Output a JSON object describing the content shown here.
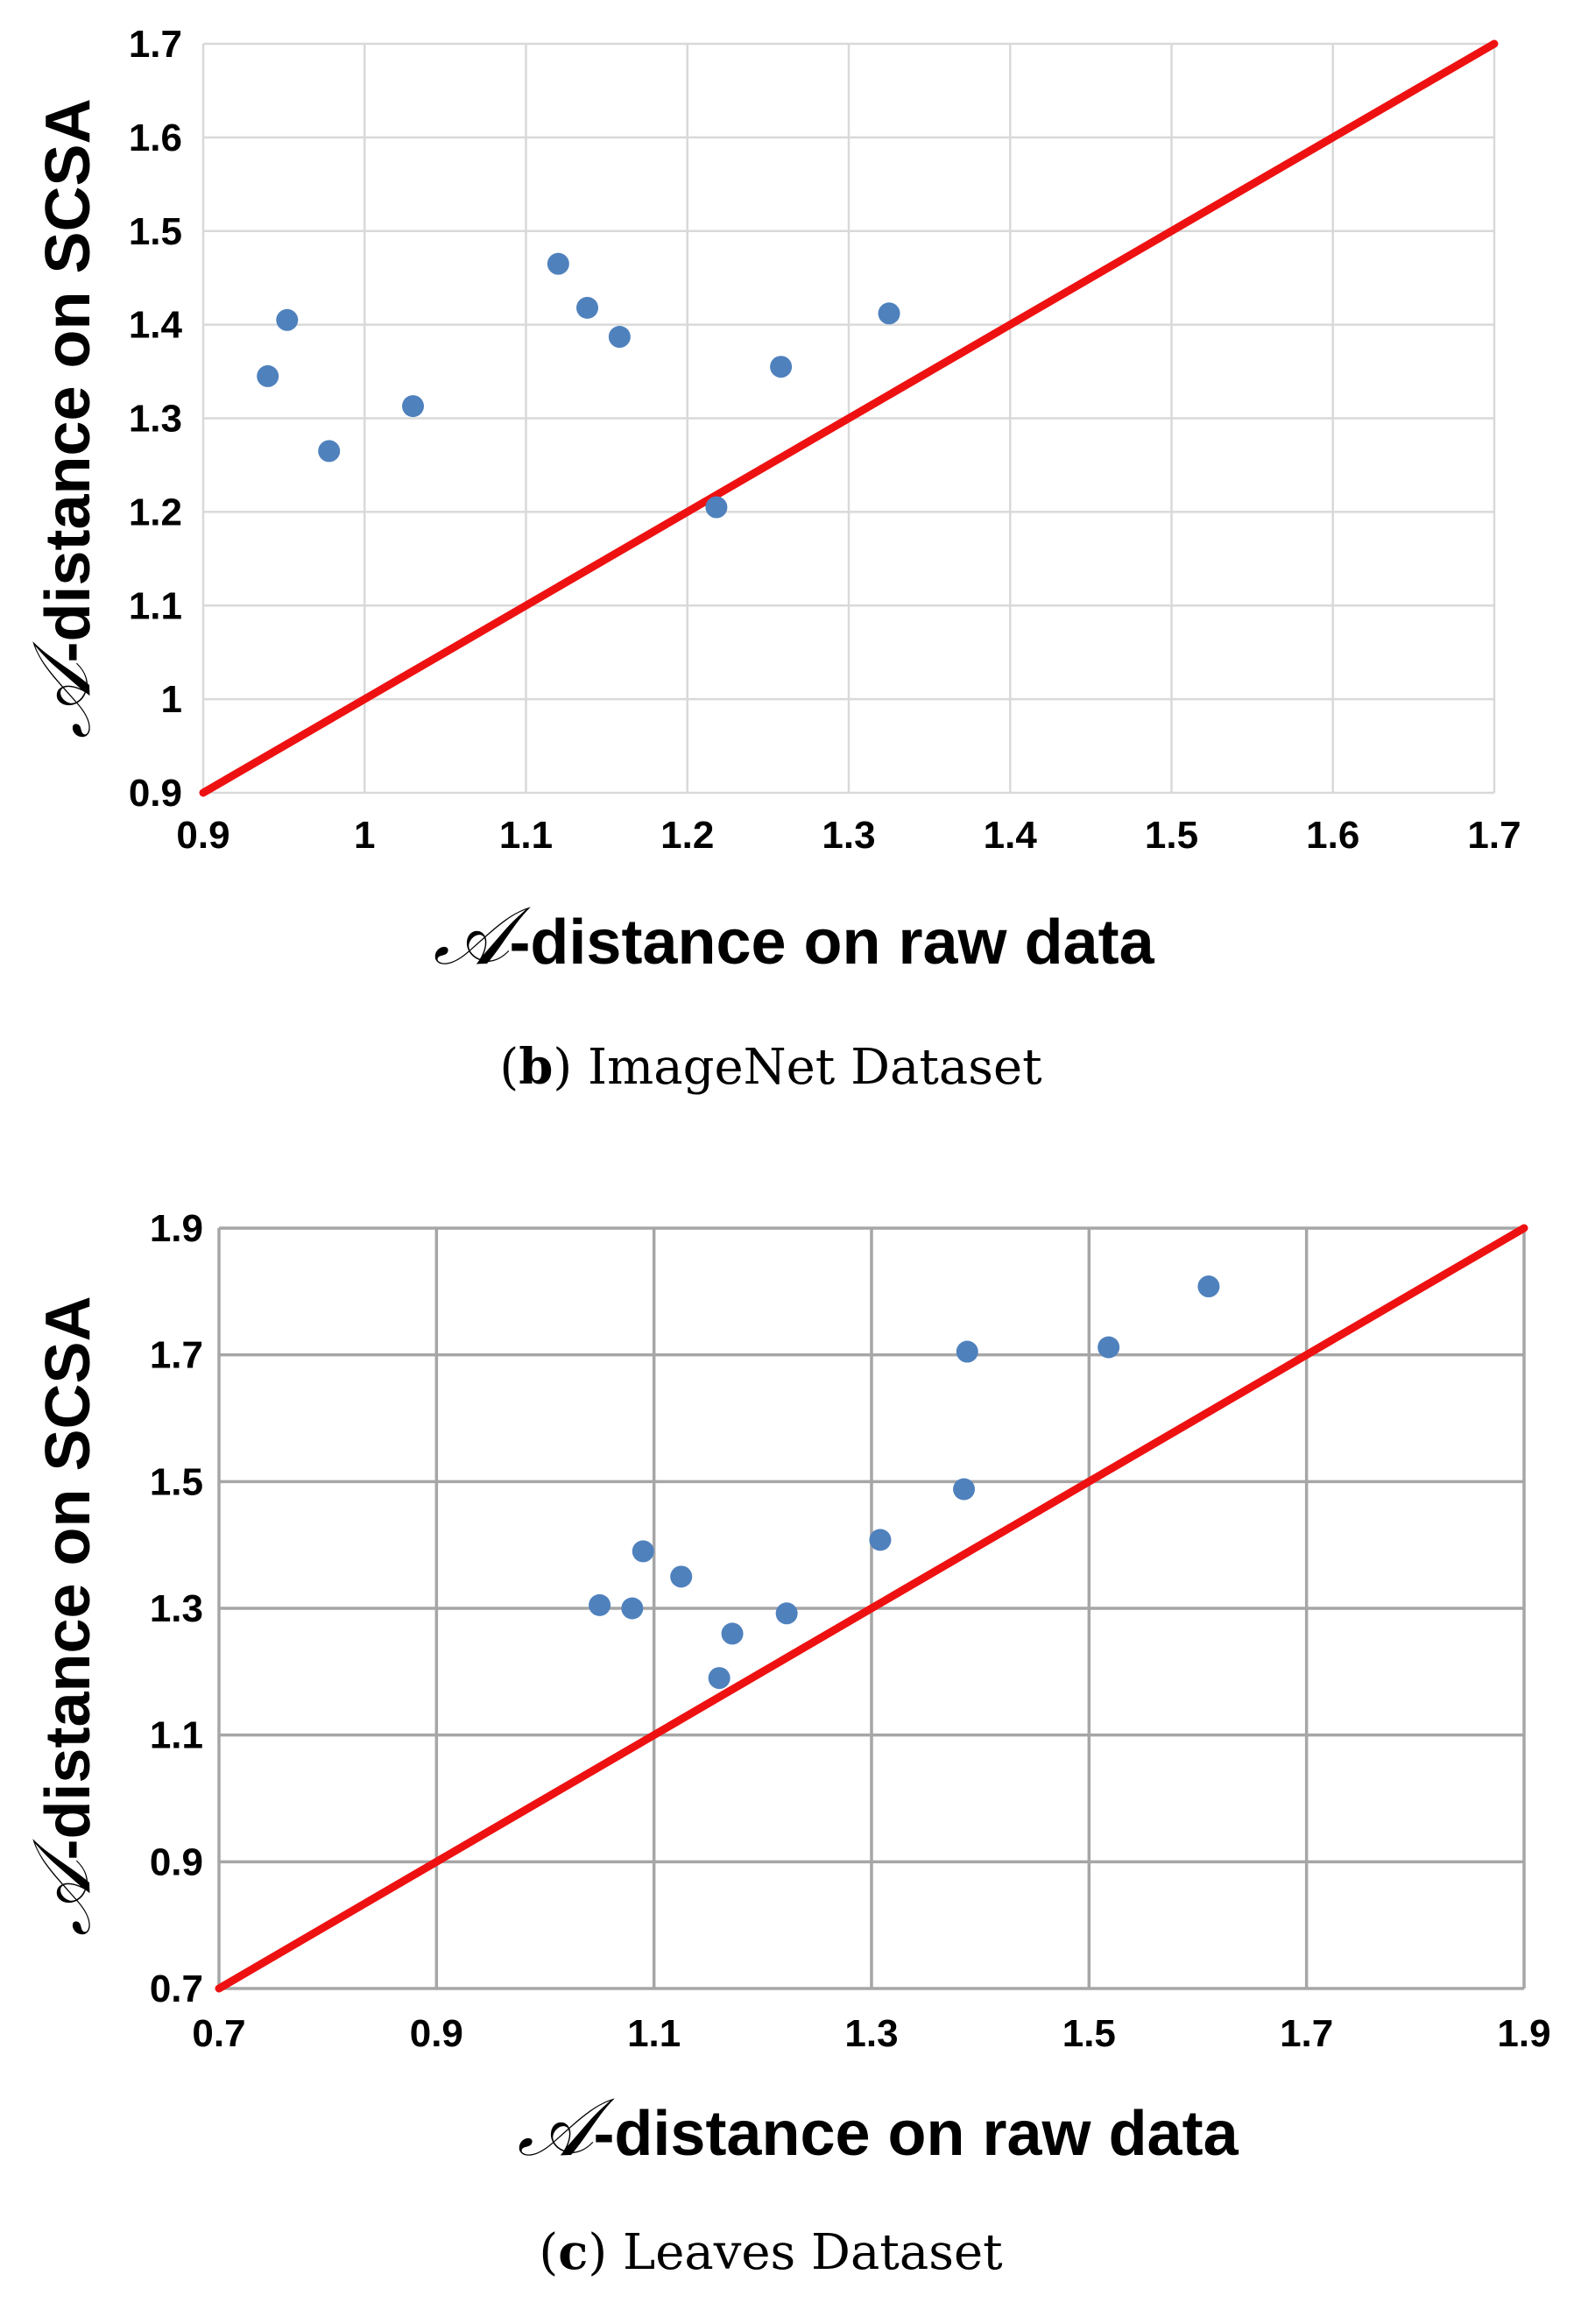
{
  "chart_data": [
    {
      "type": "scatter",
      "panel_label": "b",
      "caption": "ImageNet Dataset",
      "xlabel_symbol": "𝒜",
      "xlabel": "-distance on raw data",
      "ylabel_symbol": "𝒜",
      "ylabel": "-distance on SCSA",
      "xlim": [
        0.9,
        1.7
      ],
      "ylim": [
        0.9,
        1.7
      ],
      "x_ticks": [
        "0.9",
        "1",
        "1.1",
        "1.2",
        "1.3",
        "1.4",
        "1.5",
        "1.6",
        "1.7"
      ],
      "y_ticks": [
        "0.9",
        "1",
        "1.1",
        "1.2",
        "1.3",
        "1.4",
        "1.5",
        "1.6",
        "1.7"
      ],
      "grid": true,
      "grid_color": "#d9d9d9",
      "point_color": "#4f81bd",
      "line_color": "#ee1111",
      "reference_line": [
        [
          0.9,
          0.9
        ],
        [
          1.7,
          1.7
        ]
      ],
      "points": [
        {
          "x": 0.94,
          "y": 1.345
        },
        {
          "x": 0.952,
          "y": 1.405
        },
        {
          "x": 0.978,
          "y": 1.265
        },
        {
          "x": 1.03,
          "y": 1.313
        },
        {
          "x": 1.12,
          "y": 1.465
        },
        {
          "x": 1.138,
          "y": 1.418
        },
        {
          "x": 1.158,
          "y": 1.387
        },
        {
          "x": 1.218,
          "y": 1.205
        },
        {
          "x": 1.258,
          "y": 1.355
        },
        {
          "x": 1.325,
          "y": 1.412
        }
      ]
    },
    {
      "type": "scatter",
      "panel_label": "c",
      "caption": "Leaves Dataset",
      "xlabel_symbol": "𝒜",
      "xlabel": "-distance on raw data",
      "ylabel_symbol": "𝒜",
      "ylabel": "-distance on SCSA",
      "xlim": [
        0.7,
        1.9
      ],
      "ylim": [
        0.7,
        1.9
      ],
      "x_ticks": [
        "0.7",
        "0.9",
        "1.1",
        "1.3",
        "1.5",
        "1.7",
        "1.9"
      ],
      "y_ticks": [
        "0.7",
        "0.9",
        "1.1",
        "1.3",
        "1.5",
        "1.7",
        "1.9"
      ],
      "grid": true,
      "grid_color": "#a6a6a6",
      "point_color": "#4f81bd",
      "line_color": "#ee1111",
      "reference_line": [
        [
          0.7,
          0.7
        ],
        [
          1.9,
          1.9
        ]
      ],
      "points": [
        {
          "x": 1.05,
          "y": 1.305
        },
        {
          "x": 1.08,
          "y": 1.3
        },
        {
          "x": 1.09,
          "y": 1.39
        },
        {
          "x": 1.125,
          "y": 1.35
        },
        {
          "x": 1.16,
          "y": 1.19
        },
        {
          "x": 1.172,
          "y": 1.26
        },
        {
          "x": 1.222,
          "y": 1.292
        },
        {
          "x": 1.308,
          "y": 1.408
        },
        {
          "x": 1.385,
          "y": 1.488
        },
        {
          "x": 1.388,
          "y": 1.705
        },
        {
          "x": 1.518,
          "y": 1.712
        },
        {
          "x": 1.61,
          "y": 1.808
        }
      ]
    }
  ]
}
